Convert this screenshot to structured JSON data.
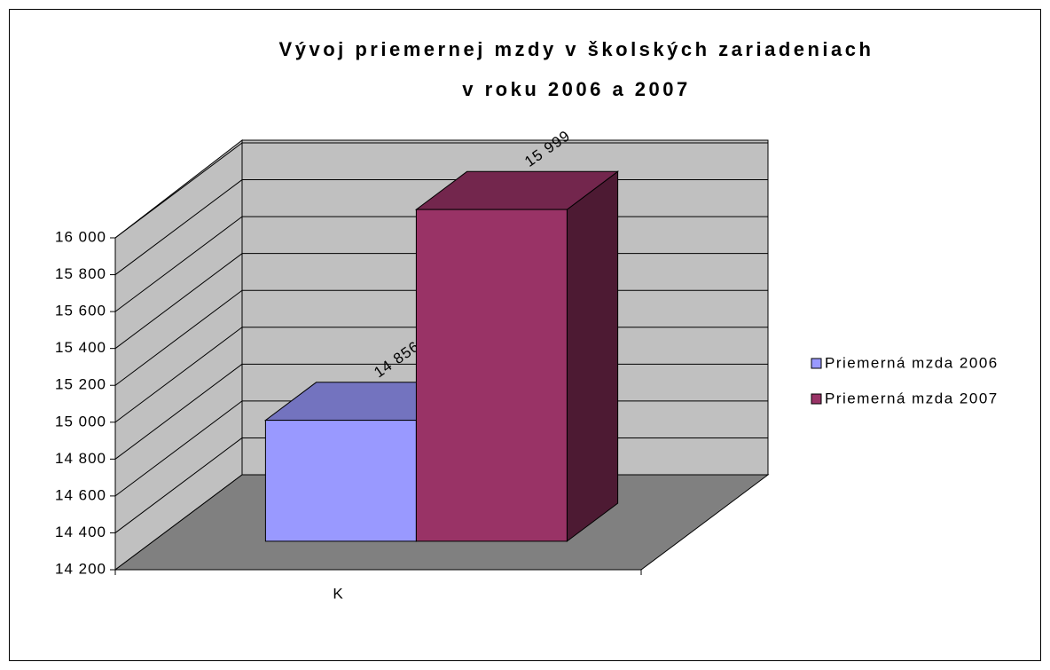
{
  "chart_data": {
    "type": "bar3d",
    "title_lines": [
      "Vývoj priemernej mzdy v školských zariadeniach",
      "v roku 2006 a 2007"
    ],
    "categories": [
      "K"
    ],
    "series": [
      {
        "name": "Priemerná mzda 2006",
        "color": "#9999ff",
        "values": [
          14856
        ],
        "value_labels": [
          "14 856"
        ]
      },
      {
        "name": "Priemerná mzda 2007",
        "color": "#993366",
        "values": [
          15999
        ],
        "value_labels": [
          "15 999"
        ]
      }
    ],
    "ylim": [
      14200,
      16000
    ],
    "yticks": [
      {
        "value": 14200,
        "label": "14 200"
      },
      {
        "value": 14400,
        "label": "14 400"
      },
      {
        "value": 14600,
        "label": "14 600"
      },
      {
        "value": 14800,
        "label": "14 800"
      },
      {
        "value": 15000,
        "label": "15 000"
      },
      {
        "value": 15200,
        "label": "15 200"
      },
      {
        "value": 15400,
        "label": "15 400"
      },
      {
        "value": 15600,
        "label": "15 600"
      },
      {
        "value": 15800,
        "label": "15 800"
      },
      {
        "value": 16000,
        "label": "16 000"
      }
    ],
    "grid": true,
    "legend": "right"
  }
}
